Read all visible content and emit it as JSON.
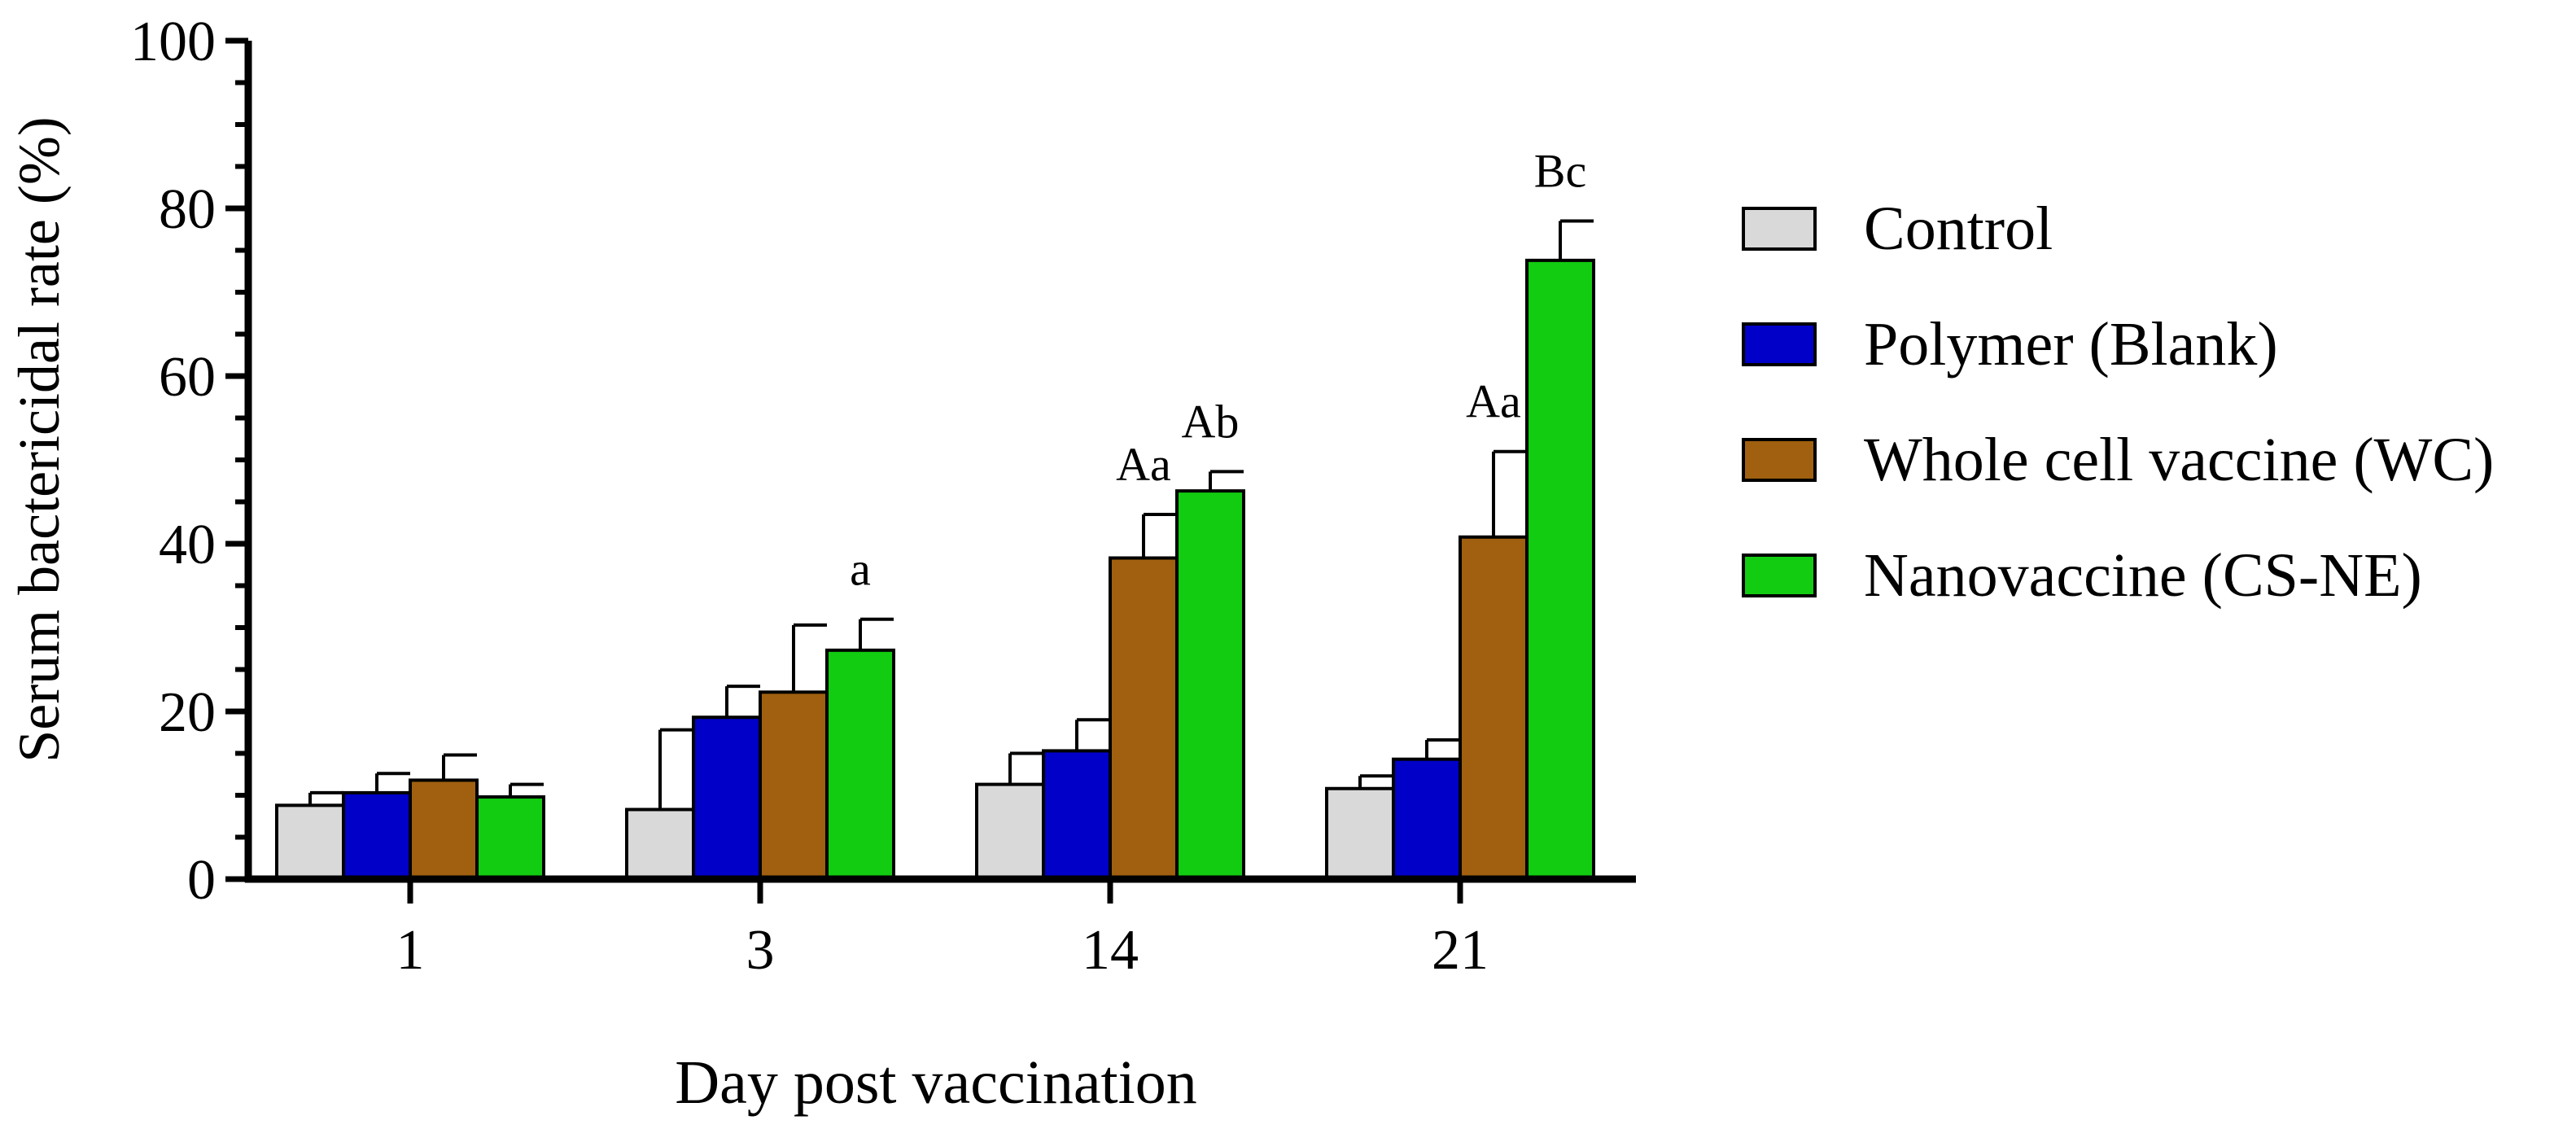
{
  "chart_data": {
    "type": "bar",
    "title": "",
    "xlabel": "Day post vaccination",
    "ylabel": "Serum bactericidal rate (%)",
    "ylim": [
      0,
      100
    ],
    "yticks": [
      "0",
      "20",
      "40",
      "60",
      "80",
      "100"
    ],
    "categories": [
      "1",
      "3",
      "14",
      "21"
    ],
    "legend_position": "right",
    "series": [
      {
        "name": "Control",
        "color": "#d9d9d9",
        "values": [
          8.8,
          8.3,
          11.3,
          10.8
        ],
        "errors": [
          1.5,
          9.5,
          3.7,
          1.5
        ]
      },
      {
        "name": "Polymer (Blank)",
        "color": "#0000c8",
        "values": [
          10.3,
          19.3,
          15.3,
          14.3
        ],
        "errors": [
          2.3,
          3.7,
          3.7,
          2.3
        ]
      },
      {
        "name": "Whole cell vaccine (WC)",
        "color": "#a0600f",
        "values": [
          11.8,
          22.3,
          38.3,
          40.8
        ],
        "errors": [
          3.0,
          8.0,
          5.2,
          10.2
        ]
      },
      {
        "name": "Nanovaccine (CS-NE)",
        "color": "#11cc11",
        "values": [
          9.8,
          27.3,
          46.3,
          73.8
        ],
        "errors": [
          1.5,
          3.7,
          2.3,
          4.7
        ]
      }
    ],
    "annotations": [
      {
        "category": "3",
        "series": "Nanovaccine (CS-NE)",
        "text": "a"
      },
      {
        "category": "14",
        "series": "Whole cell vaccine (WC)",
        "text": "Aa"
      },
      {
        "category": "14",
        "series": "Nanovaccine (CS-NE)",
        "text": "Ab"
      },
      {
        "category": "21",
        "series": "Whole cell vaccine (WC)",
        "text": "Aa"
      },
      {
        "category": "21",
        "series": "Nanovaccine (CS-NE)",
        "text": "Bc"
      }
    ]
  }
}
